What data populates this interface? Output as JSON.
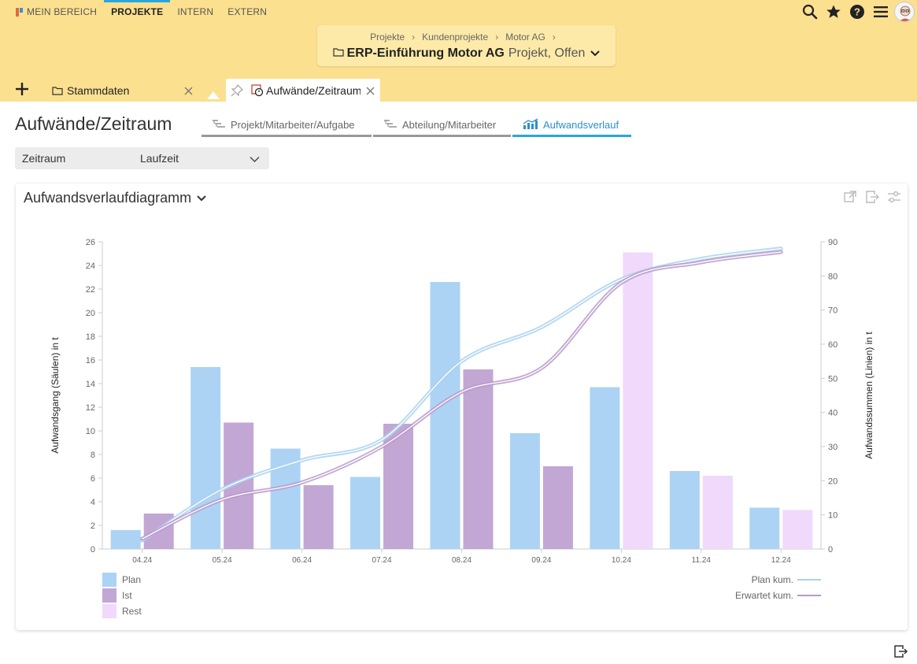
{
  "nav": {
    "items": [
      {
        "label": "MEIN BEREICH",
        "active": false
      },
      {
        "label": "PROJEKTE",
        "active": true
      },
      {
        "label": "INTERN",
        "active": false
      },
      {
        "label": "EXTERN",
        "active": false
      }
    ],
    "icons": [
      "search-icon",
      "star-icon",
      "help-icon",
      "menu-icon",
      "avatar"
    ]
  },
  "breadcrumb": {
    "path": [
      "Projekte",
      "Kundenprojekte",
      "Motor AG"
    ],
    "title": "ERP-Einführung Motor AG",
    "status": "Projekt, Offen"
  },
  "tabs": {
    "stammdaten": "Stammdaten",
    "aufwaende": "Aufwände/Zeitraum"
  },
  "page": {
    "title": "Aufwände/Zeitraum",
    "subtabs": [
      {
        "label": "Projekt/Mitarbeiter/Aufgabe",
        "active": false
      },
      {
        "label": "Abteilung/Mitarbeiter",
        "active": false
      },
      {
        "label": "Aufwandsverlauf",
        "active": true
      }
    ]
  },
  "filter": {
    "label": "Zeitraum",
    "value": "Laufzeit"
  },
  "panel": {
    "title": "Aufwandsverlaufdiagramm"
  },
  "colors": {
    "plan": "#acd3f3",
    "ist": "#c2a6d4",
    "rest": "#f0d9fa",
    "plan_line": "#a9d1f0",
    "erwartet_line": "#b89acb",
    "accent": "#29a6e0",
    "header": "#fbe08f"
  },
  "chart_data": {
    "type": "bar",
    "categories": [
      "04.24",
      "05.24",
      "06.24",
      "07.24",
      "08.24",
      "09.24",
      "10.24",
      "11.24",
      "12.24"
    ],
    "series": [
      {
        "name": "Plan",
        "axis": "left",
        "kind": "bar",
        "values": [
          1.6,
          15.4,
          8.5,
          6.1,
          22.6,
          9.8,
          13.7,
          6.6,
          3.5
        ]
      },
      {
        "name": "Ist",
        "axis": "left",
        "kind": "bar",
        "values": [
          3.0,
          10.7,
          5.4,
          10.6,
          15.2,
          7.0,
          null,
          null,
          null
        ]
      },
      {
        "name": "Rest",
        "axis": "left",
        "kind": "bar",
        "values": [
          null,
          null,
          null,
          null,
          null,
          null,
          25.1,
          6.2,
          3.3
        ]
      },
      {
        "name": "Plan kum.",
        "axis": "right",
        "kind": "line",
        "values": [
          2.5,
          17.5,
          26.0,
          32.0,
          55.0,
          65.0,
          79.0,
          85.0,
          88.0
        ]
      },
      {
        "name": "Erwartet kum.",
        "axis": "right",
        "kind": "line",
        "values": [
          3.0,
          14.5,
          19.5,
          30.0,
          46.0,
          53.0,
          78.0,
          84.0,
          87.0
        ]
      }
    ],
    "ylabel": "Aufwandsgang (Säulen) in t",
    "y2label": "Aufwandssummen (Linien) in t",
    "ylim": [
      0,
      26
    ],
    "yticks": [
      0,
      2,
      4,
      6,
      8,
      10,
      12,
      14,
      16,
      18,
      20,
      22,
      24,
      26
    ],
    "y2lim": [
      0,
      90
    ],
    "y2ticks": [
      0,
      10,
      20,
      30,
      40,
      50,
      60,
      70,
      80,
      90
    ],
    "grid": false,
    "legend": {
      "bars": [
        "Plan",
        "Ist",
        "Rest"
      ],
      "lines": [
        "Plan kum.",
        "Erwartet kum."
      ],
      "placement": "bottom"
    }
  }
}
